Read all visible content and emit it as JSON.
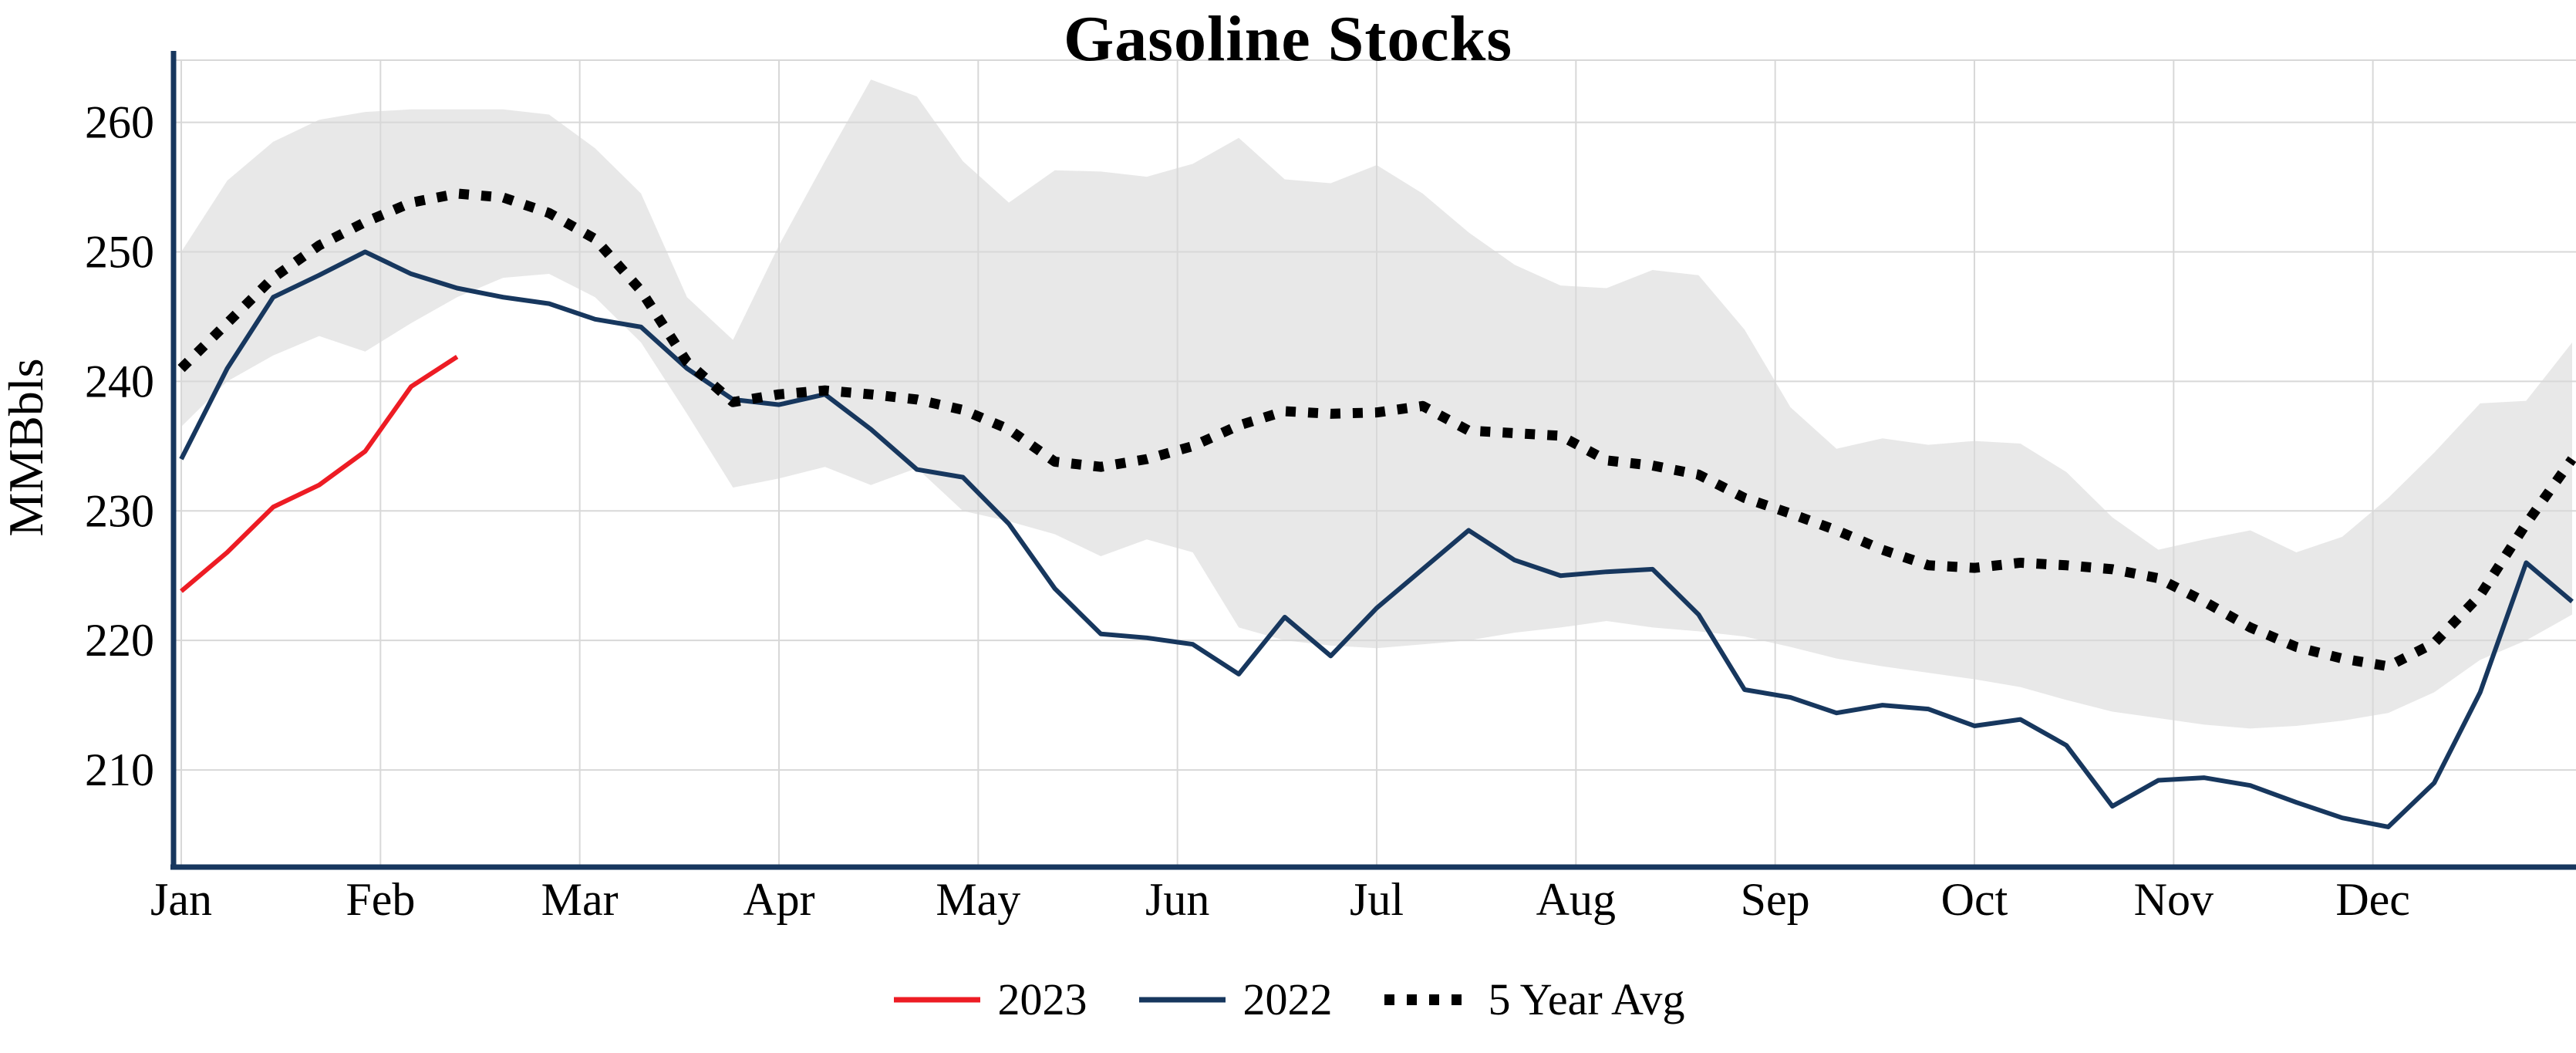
{
  "chart_data": {
    "type": "line",
    "title": "Gasoline Stocks",
    "ylabel": "MMBbls",
    "x_tick_labels": [
      "Jan",
      "Feb",
      "Mar",
      "Apr",
      "May",
      "Jun",
      "Jul",
      "Aug",
      "Sep",
      "Oct",
      "Nov",
      "Dec"
    ],
    "y_ticks": [
      210,
      220,
      230,
      240,
      250,
      260
    ],
    "ylim": [
      202.5,
      264.8
    ],
    "x_unit": "week",
    "weeks_per_month": 4.3333,
    "grid": true,
    "legend_position": "bottom-center",
    "colors": {
      "axis": "#17375e",
      "grid": "#d8d8d8"
    },
    "band": {
      "name": "5-year-range",
      "color": "#d9d9d9",
      "opacity": 0.6,
      "upper": [
        250,
        255.5,
        258.5,
        260.2,
        260.8,
        261,
        261,
        261,
        260.6,
        258,
        254.5,
        246.5,
        243.2,
        250.5,
        257,
        263.3,
        262,
        257,
        253.8,
        256.3,
        256.2,
        255.8,
        256.8,
        258.8,
        255.6,
        255.3,
        256.7,
        254.5,
        251.5,
        249,
        247.4,
        247.2,
        248.6,
        248.2,
        244,
        238,
        234.8,
        235.6,
        235.1,
        235.4,
        235.2,
        233,
        229.5,
        227,
        227.8,
        228.5,
        226.8,
        228,
        231,
        234.5,
        238.3,
        238.5,
        243
      ],
      "lower": [
        236.5,
        240,
        242,
        243.5,
        242.3,
        244.5,
        246.5,
        248,
        248.3,
        246.5,
        243,
        237.5,
        231.8,
        232.5,
        233.4,
        232,
        233.3,
        230,
        229.2,
        228.2,
        226.5,
        227.8,
        226.8,
        221,
        220,
        219.6,
        219.4,
        219.7,
        220,
        220.6,
        221,
        221.5,
        221,
        220.7,
        220.3,
        219.5,
        218.6,
        218,
        217.5,
        217,
        216.4,
        215.4,
        214.5,
        214,
        213.5,
        213.2,
        213.4,
        213.8,
        214.4,
        216,
        218.5,
        220,
        222
      ]
    },
    "series": [
      {
        "name": "2023",
        "color": "#ed1c24",
        "width": 6,
        "dash": "",
        "values": [
          223.8,
          226.8,
          230.3,
          232.0,
          234.6,
          239.6,
          241.9
        ]
      },
      {
        "name": "2022",
        "color": "#17375e",
        "width": 6,
        "dash": "",
        "values": [
          234,
          241,
          246.5,
          248.2,
          250,
          248.3,
          247.2,
          246.5,
          246,
          244.8,
          244.2,
          241,
          238.6,
          238.2,
          239,
          236.3,
          233.2,
          232.6,
          229,
          224,
          220.5,
          220.2,
          219.7,
          217.4,
          221.8,
          218.8,
          222.5,
          225.5,
          228.5,
          226.2,
          225,
          225.3,
          225.5,
          222,
          216.2,
          215.6,
          214.4,
          215,
          214.7,
          213.4,
          213.9,
          211.9,
          207.2,
          209.2,
          209.4,
          208.8,
          207.5,
          206.3,
          205.6,
          209,
          216,
          226,
          223
        ]
      },
      {
        "name": "5 Year Avg",
        "color": "#000000",
        "width": 13,
        "dash": "13 16",
        "values": [
          241,
          244.5,
          248,
          250.5,
          252.3,
          253.8,
          254.5,
          254.2,
          253,
          251,
          247,
          241.5,
          238.4,
          239,
          239.3,
          239,
          238.6,
          237.8,
          236.3,
          233.8,
          233.4,
          234,
          235,
          236.6,
          237.7,
          237.5,
          237.6,
          238.1,
          236.2,
          236,
          235.8,
          233.9,
          233.5,
          232.8,
          231,
          229.8,
          228.5,
          227,
          225.8,
          225.6,
          226,
          225.8,
          225.5,
          224.8,
          223,
          221,
          219.5,
          218.6,
          218,
          219.8,
          223.5,
          229,
          234
        ]
      }
    ]
  }
}
